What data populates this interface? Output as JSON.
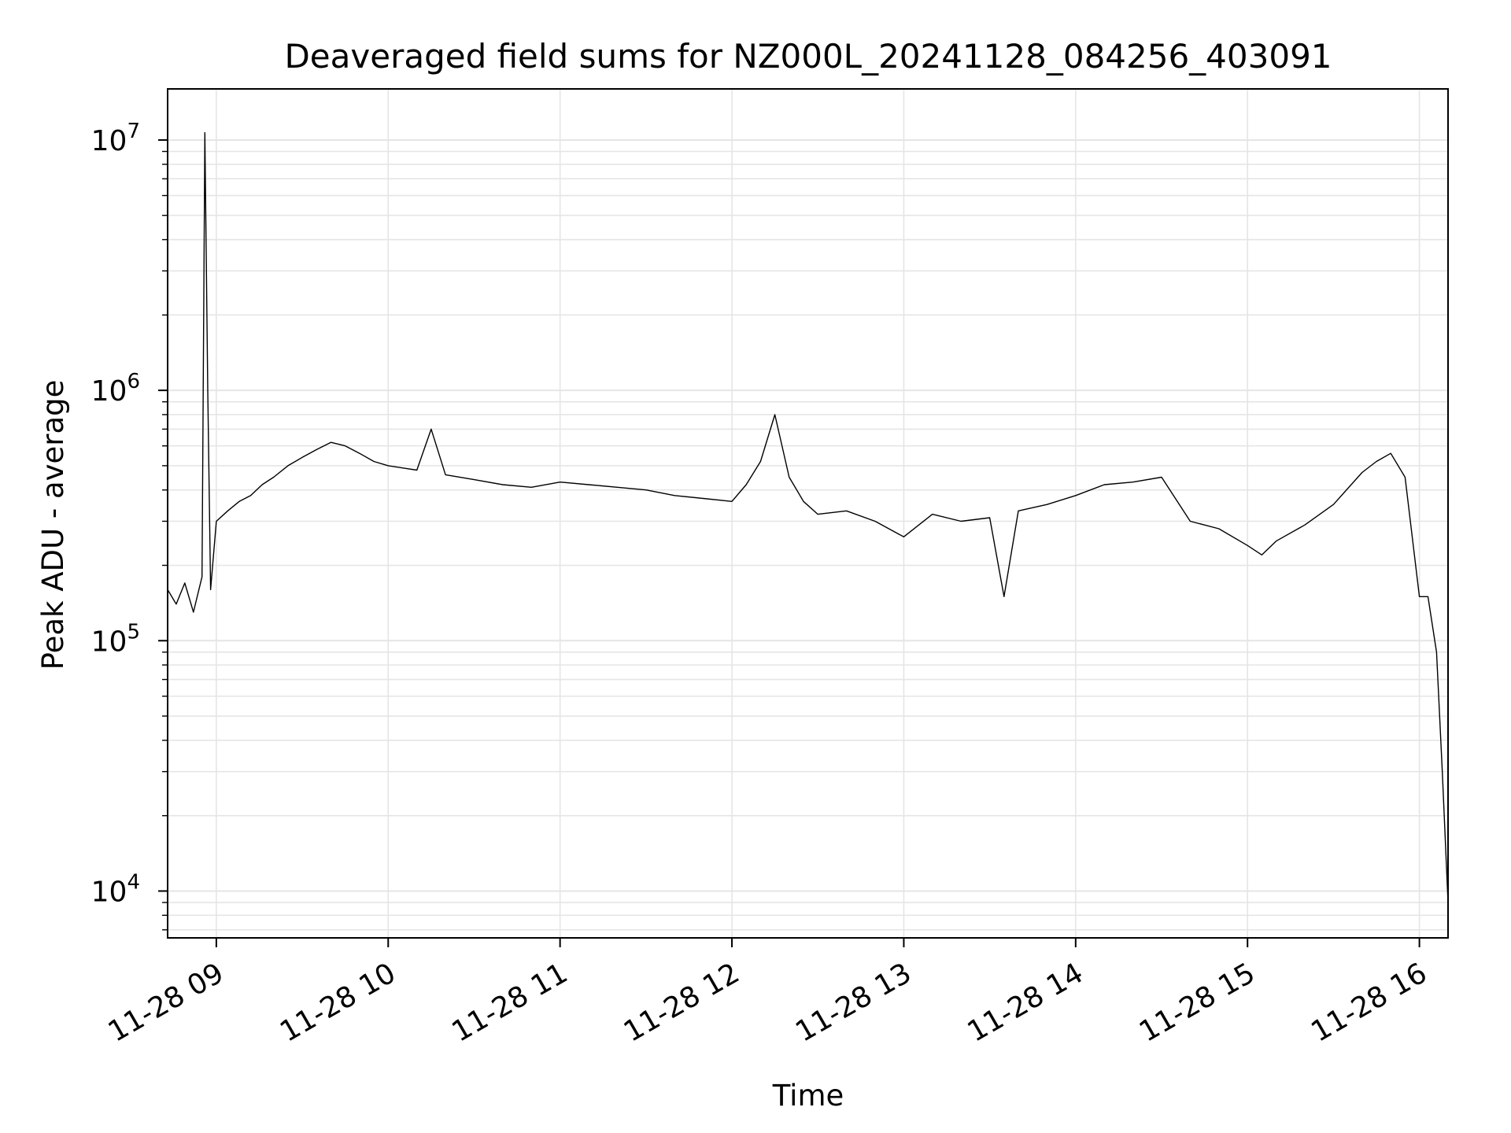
{
  "chart_data": {
    "type": "line",
    "title": "Deaveraged field sums for NZ000L_20241128_084256_403091",
    "xlabel": "Time",
    "ylabel": "Peak ADU - average",
    "x_start": "2024-11-28 08:43",
    "x_end": "2024-11-28 16:10",
    "xlim": [
      "2024-11-28 08:43",
      "2024-11-28 16:10"
    ],
    "ylim": [
      6500,
      16000000
    ],
    "yscale": "log",
    "grid": true,
    "line_color": "#000000",
    "grid_color": "#e5e5e5",
    "x_ticks": [
      {
        "value": "2024-11-28 09:00",
        "label": "11-28 09"
      },
      {
        "value": "2024-11-28 10:00",
        "label": "11-28 10"
      },
      {
        "value": "2024-11-28 11:00",
        "label": "11-28 11"
      },
      {
        "value": "2024-11-28 12:00",
        "label": "11-28 12"
      },
      {
        "value": "2024-11-28 13:00",
        "label": "11-28 13"
      },
      {
        "value": "2024-11-28 14:00",
        "label": "11-28 14"
      },
      {
        "value": "2024-11-28 15:00",
        "label": "11-28 15"
      },
      {
        "value": "2024-11-28 16:00",
        "label": "11-28 16"
      }
    ],
    "y_ticks": [
      {
        "value": 10000,
        "base": "10",
        "exp": "4"
      },
      {
        "value": 100000,
        "base": "10",
        "exp": "5"
      },
      {
        "value": 1000000,
        "base": "10",
        "exp": "6"
      },
      {
        "value": 10000000,
        "base": "10",
        "exp": "7"
      }
    ],
    "series": [
      {
        "x": [
          "2024-11-28 08:43",
          "2024-11-28 08:46",
          "2024-11-28 08:49",
          "2024-11-28 08:52",
          "2024-11-28 08:55",
          "2024-11-28 08:56",
          "2024-11-28 08:57",
          "2024-11-28 08:58",
          "2024-11-28 09:00",
          "2024-11-28 09:04",
          "2024-11-28 09:08",
          "2024-11-28 09:12",
          "2024-11-28 09:16",
          "2024-11-28 09:20",
          "2024-11-28 09:25",
          "2024-11-28 09:30",
          "2024-11-28 09:35",
          "2024-11-28 09:40",
          "2024-11-28 09:45",
          "2024-11-28 09:50",
          "2024-11-28 09:55",
          "2024-11-28 10:00",
          "2024-11-28 10:10",
          "2024-11-28 10:15",
          "2024-11-28 10:20",
          "2024-11-28 10:30",
          "2024-11-28 10:40",
          "2024-11-28 10:50",
          "2024-11-28 11:00",
          "2024-11-28 11:10",
          "2024-11-28 11:20",
          "2024-11-28 11:30",
          "2024-11-28 11:40",
          "2024-11-28 11:50",
          "2024-11-28 12:00",
          "2024-11-28 12:05",
          "2024-11-28 12:10",
          "2024-11-28 12:15",
          "2024-11-28 12:20",
          "2024-11-28 12:25",
          "2024-11-28 12:30",
          "2024-11-28 12:40",
          "2024-11-28 12:50",
          "2024-11-28 13:00",
          "2024-11-28 13:10",
          "2024-11-28 13:20",
          "2024-11-28 13:30",
          "2024-11-28 13:35",
          "2024-11-28 13:40",
          "2024-11-28 13:50",
          "2024-11-28 14:00",
          "2024-11-28 14:10",
          "2024-11-28 14:20",
          "2024-11-28 14:30",
          "2024-11-28 14:40",
          "2024-11-28 14:50",
          "2024-11-28 15:00",
          "2024-11-28 15:05",
          "2024-11-28 15:10",
          "2024-11-28 15:20",
          "2024-11-28 15:30",
          "2024-11-28 15:40",
          "2024-11-28 15:45",
          "2024-11-28 15:50",
          "2024-11-28 15:55",
          "2024-11-28 16:00",
          "2024-11-28 16:03",
          "2024-11-28 16:06",
          "2024-11-28 16:08",
          "2024-11-28 16:10"
        ],
        "y": [
          160000,
          140000,
          170000,
          130000,
          180000,
          10700000,
          1000000,
          160000,
          300000,
          330000,
          360000,
          380000,
          420000,
          450000,
          500000,
          540000,
          580000,
          620000,
          600000,
          560000,
          520000,
          500000,
          480000,
          700000,
          460000,
          440000,
          420000,
          410000,
          430000,
          420000,
          410000,
          400000,
          380000,
          370000,
          360000,
          420000,
          520000,
          800000,
          450000,
          360000,
          320000,
          330000,
          300000,
          260000,
          320000,
          300000,
          310000,
          150000,
          330000,
          350000,
          380000,
          420000,
          430000,
          450000,
          300000,
          280000,
          240000,
          220000,
          250000,
          290000,
          350000,
          470000,
          520000,
          560000,
          450000,
          150000,
          150000,
          90000,
          30000,
          9000
        ]
      }
    ]
  }
}
